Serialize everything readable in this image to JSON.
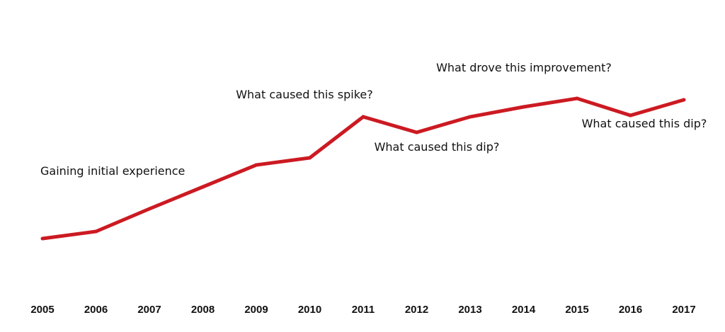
{
  "chart_data": {
    "type": "line",
    "x": [
      "2005",
      "2006",
      "2007",
      "2008",
      "2009",
      "2010",
      "2011",
      "2012",
      "2013",
      "2014",
      "2015",
      "2016",
      "2017"
    ],
    "series": [
      {
        "values": [
          0,
          10,
          42,
          73,
          104,
          114,
          172,
          150,
          172,
          186,
          198,
          174,
          196
        ]
      }
    ],
    "line_color": "#cc1a22",
    "grid": false,
    "annotations": [
      {
        "text": "Gaining initial experience",
        "x": "2005"
      },
      {
        "text": "What caused this spike?",
        "x": "2011"
      },
      {
        "text": "What caused this dip?",
        "x": "2012"
      },
      {
        "text": "What drove this improvement?",
        "x": "2015"
      },
      {
        "text": "What caused this dip?",
        "x": "2016"
      }
    ]
  }
}
